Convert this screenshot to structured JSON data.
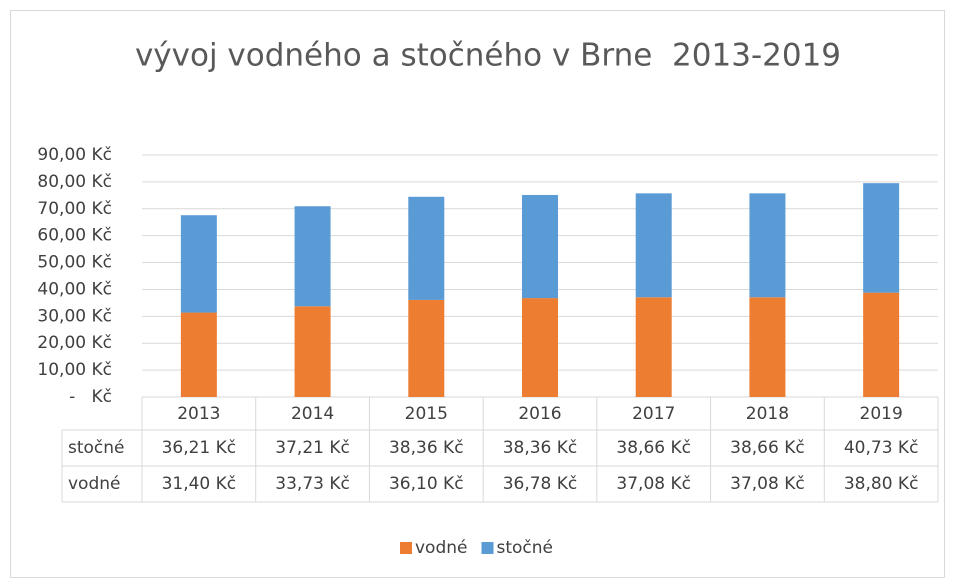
{
  "chart_data": {
    "type": "bar",
    "stacked": true,
    "title": "vývoj vodného a stočného v Brne  2013-2019",
    "categories": [
      "2013",
      "2014",
      "2015",
      "2016",
      "2017",
      "2018",
      "2019"
    ],
    "series": [
      {
        "name": "vodné",
        "color": "#ed7d31",
        "values": [
          31.4,
          33.73,
          36.1,
          36.78,
          37.08,
          37.08,
          38.8
        ],
        "value_labels": [
          "31,40 Kč",
          "33,73 Kč",
          "36,10 Kč",
          "36,78 Kč",
          "37,08 Kč",
          "37,08 Kč",
          "38,80 Kč"
        ]
      },
      {
        "name": "stočné",
        "color": "#5b9bd5",
        "values": [
          36.21,
          37.21,
          38.36,
          38.36,
          38.66,
          38.66,
          40.73
        ],
        "value_labels": [
          "36,21 Kč",
          "37,21 Kč",
          "38,36 Kč",
          "38,36 Kč",
          "38,66 Kč",
          "38,66 Kč",
          "40,73 Kč"
        ]
      }
    ],
    "ylim": [
      0,
      90
    ],
    "yticks": [
      {
        "value": 0,
        "label": "-   Kč"
      },
      {
        "value": 10,
        "label": "10,00 Kč"
      },
      {
        "value": 20,
        "label": "20,00 Kč"
      },
      {
        "value": 30,
        "label": "30,00 Kč"
      },
      {
        "value": 40,
        "label": "40,00 Kč"
      },
      {
        "value": 50,
        "label": "50,00 Kč"
      },
      {
        "value": 60,
        "label": "60,00 Kč"
      },
      {
        "value": 70,
        "label": "70,00 Kč"
      },
      {
        "value": 80,
        "label": "80,00 Kč"
      },
      {
        "value": 90,
        "label": "90,00 Kč"
      }
    ],
    "grid": true,
    "legend": "bottom"
  }
}
